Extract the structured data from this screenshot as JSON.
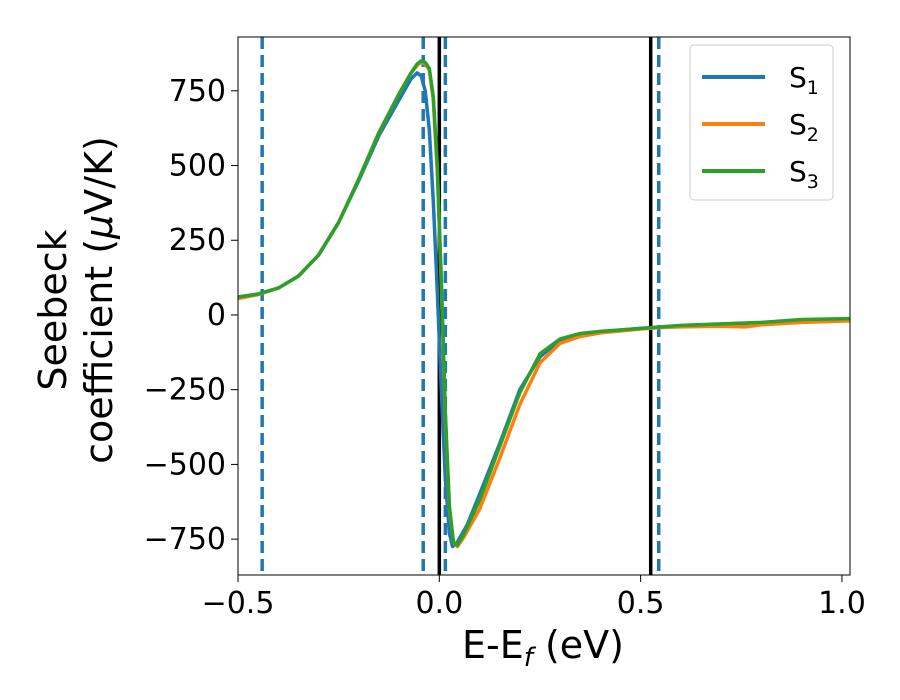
{
  "chart_data": {
    "type": "line",
    "xlabel": {
      "main": "E-E",
      "sub": "f",
      "suffix": " (eV)"
    },
    "ylabel": {
      "line1": "Seebeck",
      "line2_text": "coefficient  (",
      "line2_mu": "μ",
      "line2_end": "V/K)"
    },
    "xlim": [
      -0.5,
      1.02
    ],
    "ylim": [
      -870,
      930
    ],
    "xticks": [
      -0.5,
      0.0,
      0.5,
      1.0
    ],
    "xtick_labels": [
      "−0.5",
      "0.0",
      "0.5",
      "1.0"
    ],
    "yticks": [
      -750,
      -500,
      -250,
      0,
      250,
      500,
      750
    ],
    "ytick_labels": [
      "−750",
      "−500",
      "−250",
      "0",
      "250",
      "500",
      "750"
    ],
    "legend_position": "top-right",
    "vlines": [
      {
        "x": -0.44,
        "style": "dashed",
        "color": "#1f77b4"
      },
      {
        "x": -0.04,
        "style": "dashed",
        "color": "#1f77b4"
      },
      {
        "x": 0.015,
        "style": "dashed",
        "color": "#1f77b4"
      },
      {
        "x": 0.545,
        "style": "dashed",
        "color": "#1f77b4"
      },
      {
        "x": 0.0,
        "style": "solid",
        "color": "#000000"
      },
      {
        "x": 0.525,
        "style": "solid",
        "color": "#000000"
      }
    ],
    "series": [
      {
        "name": "S",
        "sub": "1",
        "color": "#1f77b4",
        "points": [
          [
            -0.5,
            60
          ],
          [
            -0.45,
            70
          ],
          [
            -0.4,
            90
          ],
          [
            -0.35,
            130
          ],
          [
            -0.3,
            200
          ],
          [
            -0.25,
            310
          ],
          [
            -0.2,
            450
          ],
          [
            -0.15,
            600
          ],
          [
            -0.1,
            720
          ],
          [
            -0.07,
            790
          ],
          [
            -0.055,
            810
          ],
          [
            -0.045,
            800
          ],
          [
            -0.035,
            750
          ],
          [
            -0.025,
            620
          ],
          [
            -0.015,
            380
          ],
          [
            -0.005,
            80
          ],
          [
            0.005,
            -250
          ],
          [
            0.015,
            -550
          ],
          [
            0.025,
            -730
          ],
          [
            0.033,
            -775
          ],
          [
            0.045,
            -760
          ],
          [
            0.07,
            -700
          ],
          [
            0.1,
            -600
          ],
          [
            0.15,
            -430
          ],
          [
            0.2,
            -250
          ],
          [
            0.25,
            -140
          ],
          [
            0.3,
            -85
          ],
          [
            0.35,
            -65
          ],
          [
            0.4,
            -57
          ],
          [
            0.5,
            -45
          ],
          [
            0.55,
            -42
          ],
          [
            0.6,
            -38
          ],
          [
            0.7,
            -32
          ],
          [
            0.8,
            -30
          ],
          [
            0.9,
            -22
          ],
          [
            1.02,
            -15
          ]
        ]
      },
      {
        "name": "S",
        "sub": "2",
        "color": "#ff7f0e",
        "points": [
          [
            -0.5,
            55
          ],
          [
            -0.45,
            68
          ],
          [
            -0.4,
            90
          ],
          [
            -0.35,
            130
          ],
          [
            -0.3,
            200
          ],
          [
            -0.25,
            310
          ],
          [
            -0.2,
            455
          ],
          [
            -0.15,
            610
          ],
          [
            -0.1,
            740
          ],
          [
            -0.07,
            810
          ],
          [
            -0.055,
            835
          ],
          [
            -0.045,
            845
          ],
          [
            -0.035,
            840
          ],
          [
            -0.025,
            820
          ],
          [
            -0.015,
            720
          ],
          [
            -0.005,
            480
          ],
          [
            0.005,
            100
          ],
          [
            0.015,
            -350
          ],
          [
            0.025,
            -650
          ],
          [
            0.035,
            -760
          ],
          [
            0.045,
            -775
          ],
          [
            0.06,
            -745
          ],
          [
            0.1,
            -650
          ],
          [
            0.15,
            -480
          ],
          [
            0.2,
            -300
          ],
          [
            0.25,
            -160
          ],
          [
            0.3,
            -95
          ],
          [
            0.35,
            -72
          ],
          [
            0.4,
            -60
          ],
          [
            0.5,
            -47
          ],
          [
            0.55,
            -42
          ],
          [
            0.6,
            -40
          ],
          [
            0.7,
            -38
          ],
          [
            0.76,
            -40
          ],
          [
            0.8,
            -33
          ],
          [
            0.9,
            -25
          ],
          [
            1.02,
            -20
          ]
        ]
      },
      {
        "name": "S",
        "sub": "3",
        "color": "#2ca02c",
        "points": [
          [
            -0.5,
            60
          ],
          [
            -0.45,
            70
          ],
          [
            -0.4,
            90
          ],
          [
            -0.35,
            130
          ],
          [
            -0.3,
            200
          ],
          [
            -0.25,
            310
          ],
          [
            -0.2,
            455
          ],
          [
            -0.15,
            610
          ],
          [
            -0.1,
            740
          ],
          [
            -0.07,
            810
          ],
          [
            -0.055,
            840
          ],
          [
            -0.045,
            850
          ],
          [
            -0.035,
            845
          ],
          [
            -0.025,
            825
          ],
          [
            -0.015,
            730
          ],
          [
            -0.005,
            500
          ],
          [
            0.005,
            120
          ],
          [
            0.015,
            -330
          ],
          [
            0.025,
            -640
          ],
          [
            0.035,
            -760
          ],
          [
            0.045,
            -770
          ],
          [
            0.06,
            -735
          ],
          [
            0.1,
            -620
          ],
          [
            0.15,
            -440
          ],
          [
            0.2,
            -260
          ],
          [
            0.25,
            -130
          ],
          [
            0.3,
            -80
          ],
          [
            0.35,
            -62
          ],
          [
            0.4,
            -55
          ],
          [
            0.5,
            -45
          ],
          [
            0.55,
            -40
          ],
          [
            0.6,
            -35
          ],
          [
            0.7,
            -30
          ],
          [
            0.8,
            -25
          ],
          [
            0.9,
            -15
          ],
          [
            1.02,
            -12
          ]
        ]
      }
    ]
  }
}
